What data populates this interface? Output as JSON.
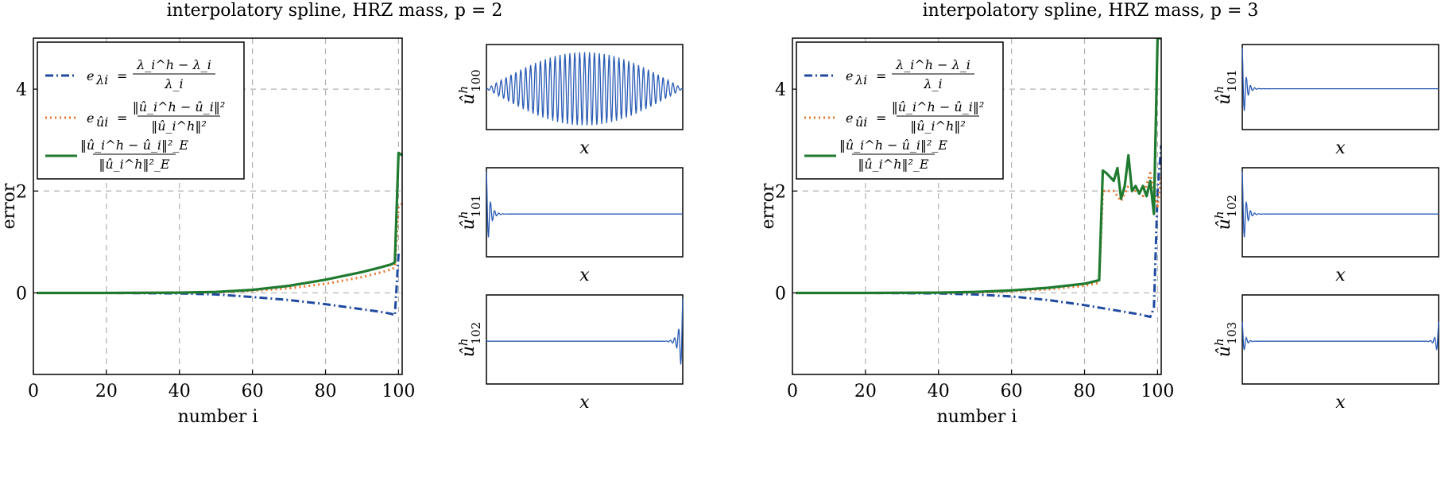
{
  "colors": {
    "eig": "#1f4aa0",
    "l2": "#e8772e",
    "energy": "#1f7a2f",
    "mode": "#2a5bb5",
    "grid": "#b0b0b0"
  },
  "chart_data": [
    {
      "type": "line",
      "title": "interpolatory spline, HRZ mass, p = 2",
      "xlabel": "number i",
      "ylabel": "error",
      "xlim": [
        0,
        101
      ],
      "ylim": [
        -1.6,
        5
      ],
      "xticks": [
        0,
        20,
        40,
        60,
        80,
        100
      ],
      "yticks": [
        0,
        2,
        4
      ],
      "grid": true,
      "legend_position": "top-left",
      "series": [
        {
          "name": "e_λi = (λ_i^h − λ_i)/λ_i",
          "style": "dash-dot",
          "color_key": "eig",
          "x": [
            1,
            20,
            40,
            50,
            60,
            70,
            80,
            90,
            95,
            98,
            99,
            100,
            101
          ],
          "y": [
            0,
            0,
            -0.01,
            -0.03,
            -0.08,
            -0.14,
            -0.22,
            -0.32,
            -0.37,
            -0.41,
            -0.44,
            0.75,
            0.7
          ]
        },
        {
          "name": "e_ûi = ‖û_i^h − û_i‖² / ‖û_i^h‖²",
          "style": "dotted",
          "color_key": "l2",
          "x": [
            1,
            20,
            40,
            50,
            60,
            70,
            80,
            90,
            95,
            98,
            99,
            100,
            101
          ],
          "y": [
            0,
            0,
            0.005,
            0.015,
            0.04,
            0.09,
            0.18,
            0.31,
            0.4,
            0.46,
            0.5,
            1.7,
            1.75
          ]
        },
        {
          "name": "‖û_i^h − û_i‖²_E / ‖û_i^h‖²_E",
          "style": "solid",
          "color_key": "energy",
          "x": [
            1,
            20,
            40,
            50,
            60,
            70,
            80,
            90,
            95,
            98,
            99,
            100,
            101
          ],
          "y": [
            0,
            0,
            0.005,
            0.02,
            0.06,
            0.14,
            0.26,
            0.41,
            0.5,
            0.56,
            0.6,
            2.75,
            2.7
          ]
        }
      ],
      "insets": [
        {
          "label_base": "û",
          "sup": "h",
          "sub": "100",
          "xlabel": "x",
          "shape": "oscillating-envelope"
        },
        {
          "label_base": "û",
          "sup": "h",
          "sub": "101",
          "xlabel": "x",
          "shape": "left-spike"
        },
        {
          "label_base": "û",
          "sup": "h",
          "sub": "102",
          "xlabel": "x",
          "shape": "right-spike"
        }
      ]
    },
    {
      "type": "line",
      "title": "interpolatory spline, HRZ mass, p = 3",
      "xlabel": "number i",
      "ylabel": "error",
      "xlim": [
        0,
        101
      ],
      "ylim": [
        -1.6,
        5
      ],
      "xticks": [
        0,
        20,
        40,
        60,
        80,
        100
      ],
      "yticks": [
        0,
        2,
        4
      ],
      "grid": true,
      "legend_position": "top-left",
      "series": [
        {
          "name": "e_λi = (λ_i^h − λ_i)/λ_i",
          "style": "dash-dot",
          "color_key": "eig",
          "x": [
            1,
            20,
            40,
            50,
            60,
            70,
            80,
            85,
            90,
            95,
            98,
            99,
            100,
            101
          ],
          "y": [
            0,
            0,
            -0.01,
            -0.03,
            -0.07,
            -0.14,
            -0.24,
            -0.3,
            -0.36,
            -0.42,
            -0.47,
            -0.3,
            2.0,
            2.9
          ]
        },
        {
          "name": "e_ûi = ‖û_i^h − û_i‖² / ‖û_i^h‖²",
          "style": "dotted",
          "color_key": "l2",
          "x": [
            1,
            20,
            40,
            50,
            60,
            70,
            80,
            84,
            85,
            88,
            90,
            92,
            94,
            96,
            98,
            99,
            100,
            101
          ],
          "y": [
            0,
            0,
            0.003,
            0.01,
            0.03,
            0.07,
            0.14,
            0.2,
            2.0,
            2.0,
            1.8,
            2.1,
            2.0,
            1.9,
            2.35,
            2.0,
            1.7,
            2.3
          ]
        },
        {
          "name": "‖û_i^h − û_i‖²_E / ‖û_i^h‖²_E",
          "style": "solid",
          "color_key": "energy",
          "x": [
            1,
            20,
            40,
            50,
            60,
            70,
            80,
            84,
            85,
            86,
            88,
            89,
            90,
            91,
            92,
            93,
            94,
            95,
            96,
            97,
            98,
            99,
            100,
            101
          ],
          "y": [
            0,
            0,
            0.005,
            0.02,
            0.05,
            0.1,
            0.18,
            0.25,
            2.4,
            2.35,
            2.2,
            2.45,
            1.85,
            2.1,
            2.7,
            2.0,
            2.1,
            1.95,
            2.1,
            1.9,
            2.2,
            1.55,
            5.0,
            5.0
          ]
        }
      ],
      "insets": [
        {
          "label_base": "û",
          "sup": "h",
          "sub": "101",
          "xlabel": "x",
          "shape": "left-spike"
        },
        {
          "label_base": "û",
          "sup": "h",
          "sub": "102",
          "xlabel": "x",
          "shape": "left-spike"
        },
        {
          "label_base": "û",
          "sup": "h",
          "sub": "103",
          "xlabel": "x",
          "shape": "both-spike"
        }
      ]
    }
  ],
  "legend_text": {
    "eig_lhs": "e",
    "eig_lhs_sub": "λi",
    "eig_num": "λ_i^h − λ_i",
    "eig_den": "λ_i",
    "l2_lhs": "e",
    "l2_lhs_sub": "ûi",
    "l2_num": "‖û_i^h − û_i‖²",
    "l2_den": "‖û_i^h‖²",
    "en_num": "‖û_i^h − û_i‖²_E",
    "en_den": "‖û_i^h‖²_E"
  }
}
